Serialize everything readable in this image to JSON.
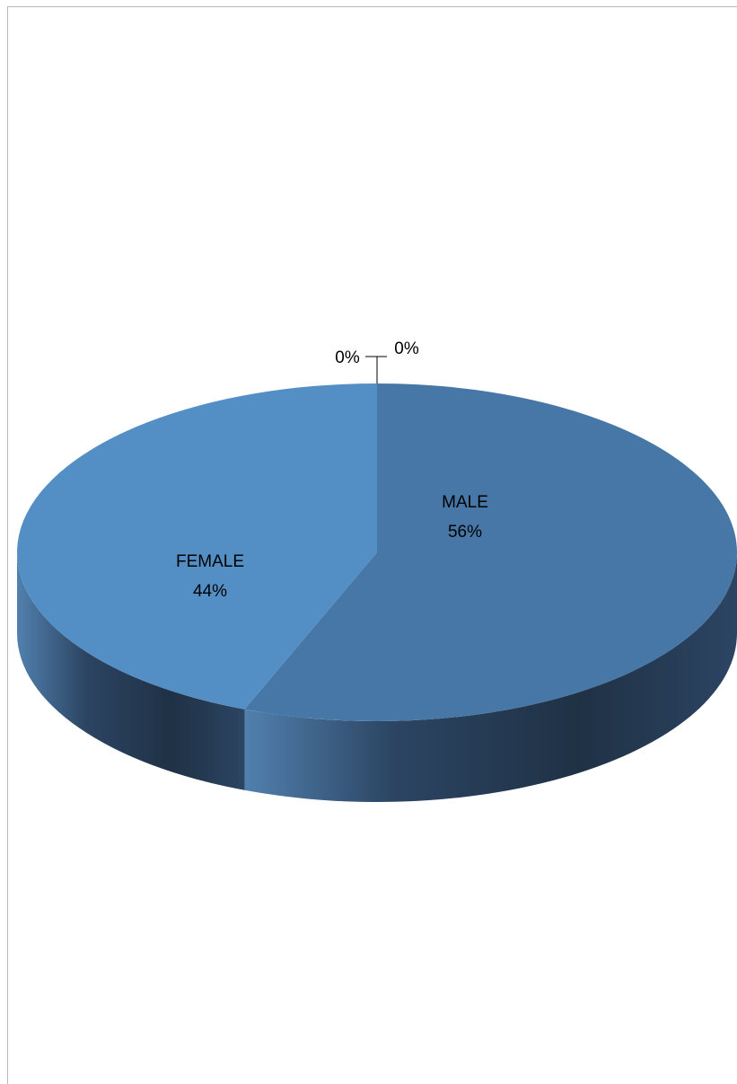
{
  "chart_data": {
    "type": "pie",
    "style": "3d",
    "categories": [
      "MALE",
      "FEMALE",
      "",
      ""
    ],
    "values": [
      56,
      44,
      0,
      0
    ],
    "labels": [
      {
        "category": "MALE",
        "percent": "56%"
      },
      {
        "category": "FEMALE",
        "percent": "44%"
      },
      {
        "category": "",
        "percent": "0%"
      },
      {
        "category": "",
        "percent": "0%"
      }
    ],
    "legend": "none",
    "colors": {
      "male_top": "#4677a6",
      "female_top": "#538fc5",
      "side_dark": "#1f3145",
      "side_mid": "#2c4563",
      "side_light": "#5180ae"
    }
  }
}
